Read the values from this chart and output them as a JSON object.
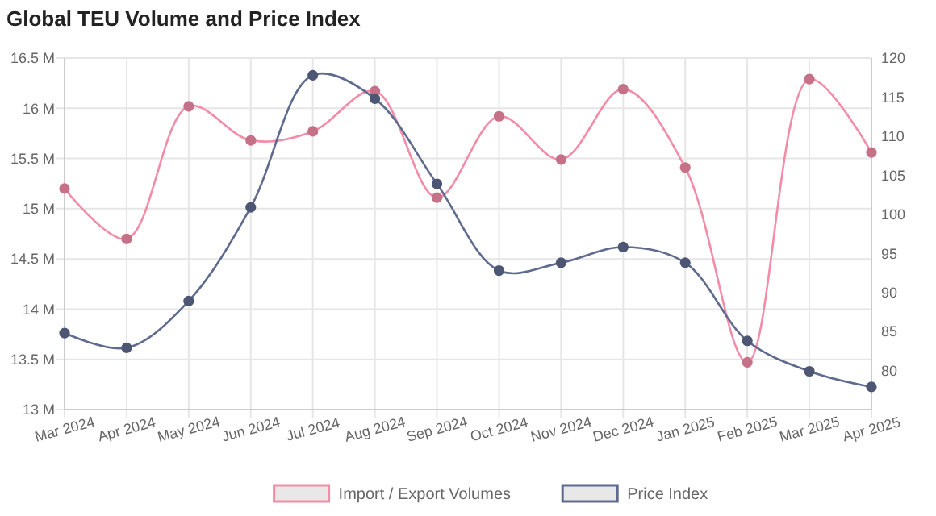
{
  "chart_data": {
    "type": "line",
    "title": "Global TEU Volume and Price Index",
    "categories": [
      "Mar 2024",
      "Apr 2024",
      "May 2024",
      "Jun 2024",
      "Jul 2024",
      "Aug 2024",
      "Sep 2024",
      "Oct 2024",
      "Nov 2024",
      "Dec 2024",
      "Jan 2025",
      "Feb 2025",
      "Mar 2025",
      "Apr 2025"
    ],
    "series": [
      {
        "name": "Import / Export Volumes",
        "color": "#f48ca8",
        "values": [
          15.2,
          14.7,
          16.02,
          15.68,
          15.77,
          16.17,
          15.11,
          15.92,
          15.49,
          16.19,
          15.41,
          13.47,
          16.29,
          15.56
        ]
      },
      {
        "name": "Price Index",
        "color": "#5f6b8e",
        "axis": "y2",
        "values": [
          84.8,
          82.9,
          88.9,
          100.9,
          117.8,
          114.8,
          103.9,
          92.8,
          93.8,
          95.8,
          93.8,
          83.8,
          79.9,
          77.9
        ]
      }
    ],
    "ylim": [
      13,
      16.5
    ],
    "yticks": [
      {
        "value": 13,
        "label": "13 M"
      },
      {
        "value": 13.5,
        "label": "13.5 M"
      },
      {
        "value": 14,
        "label": "14 M"
      },
      {
        "value": 14.5,
        "label": "14.5 M"
      },
      {
        "value": 15,
        "label": "15 M"
      },
      {
        "value": 15.5,
        "label": "15.5 M"
      },
      {
        "value": 16,
        "label": "16 M"
      },
      {
        "value": 16.5,
        "label": "16.5 M"
      }
    ],
    "y2lim": [
      75,
      120
    ],
    "y2ticks": [
      80,
      85,
      90,
      95,
      100,
      105,
      110,
      115,
      120
    ],
    "grid": true,
    "legend": "bottom",
    "marker": "circle",
    "line_style": "solid"
  }
}
